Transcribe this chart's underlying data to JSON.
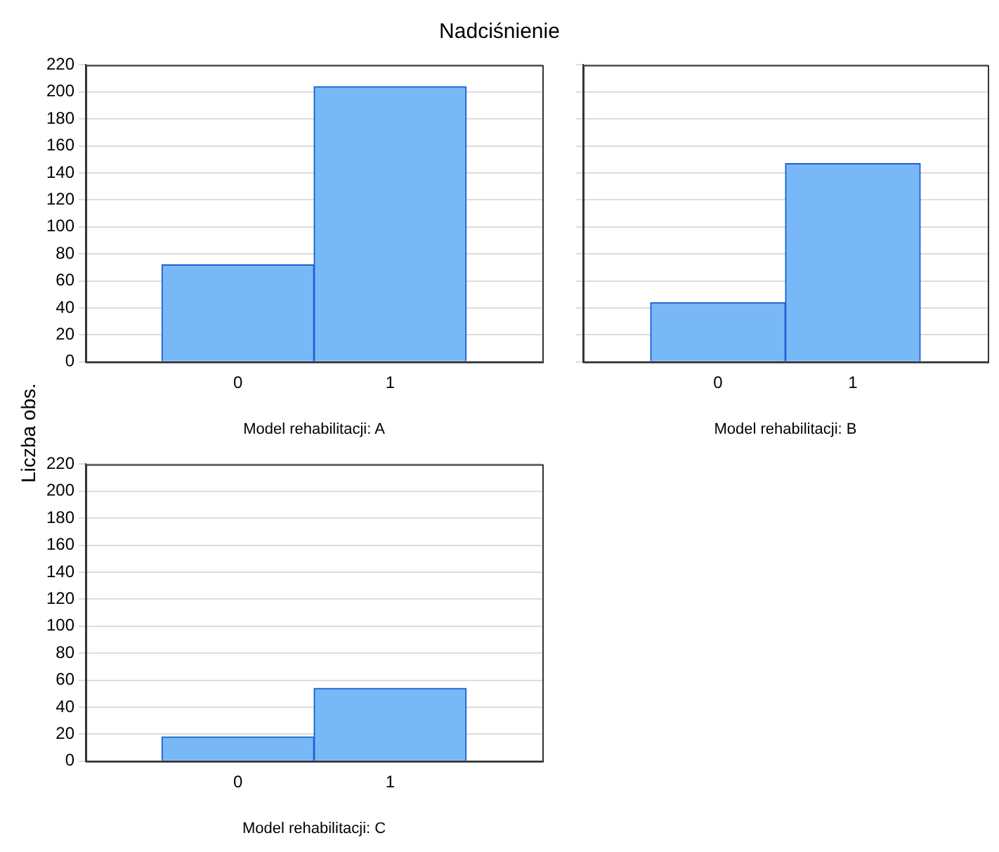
{
  "chart_data": [
    {
      "type": "bar",
      "title": "Nadciśnienie",
      "ylabel": "Liczba obs.",
      "xlabel": "Model rehabilitacji: A",
      "categories": [
        "0",
        "1"
      ],
      "values": [
        72,
        204
      ],
      "color": "#79b8f7",
      "ylim": [
        0,
        220
      ],
      "yticks": [
        0,
        20,
        40,
        60,
        80,
        100,
        120,
        140,
        160,
        180,
        200,
        220
      ],
      "grid": "y"
    },
    {
      "type": "bar",
      "xlabel": "Model rehabilitacji: B",
      "categories": [
        "0",
        "1"
      ],
      "values": [
        44,
        147
      ],
      "color": "#79b8f7",
      "ylim": [
        0,
        220
      ],
      "yticks": [
        0,
        20,
        40,
        60,
        80,
        100,
        120,
        140,
        160,
        180,
        200,
        220
      ],
      "grid": "y",
      "tick_labels": "x"
    },
    {
      "type": "bar",
      "xlabel": "Model rehabilitacji: C",
      "categories": [
        "0",
        "1"
      ],
      "values": [
        18,
        54
      ],
      "color": "#79b8f7",
      "ylim": [
        0,
        220
      ],
      "yticks": [
        0,
        20,
        40,
        60,
        80,
        100,
        120,
        140,
        160,
        180,
        200,
        220
      ],
      "grid": "y"
    }
  ]
}
